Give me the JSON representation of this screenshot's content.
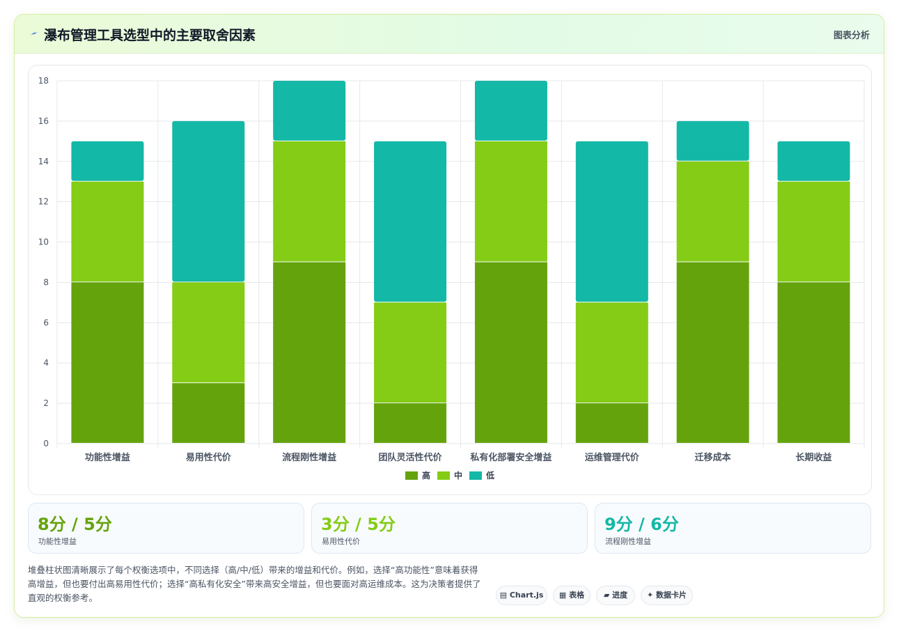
{
  "header": {
    "icon": "lightning-icon",
    "title": "瀑布管理工具选型中的主要取舍因素",
    "badge": "图表分析"
  },
  "colors": {
    "high": "#65a30d",
    "mid": "#84cc16",
    "low": "#14b8a6",
    "grid": "#e5e7eb",
    "axis_text": "#4b5563"
  },
  "chart_data": {
    "type": "bar",
    "stacked": true,
    "categories": [
      "功能性增益",
      "易用性代价",
      "流程刚性增益",
      "团队灵活性代价",
      "私有化部署安全增益",
      "运维管理代价",
      "迁移成本",
      "长期收益"
    ],
    "series": [
      {
        "name": "高",
        "values": [
          8,
          3,
          9,
          2,
          9,
          2,
          9,
          8
        ]
      },
      {
        "name": "中",
        "values": [
          5,
          5,
          6,
          5,
          6,
          5,
          5,
          5
        ]
      },
      {
        "name": "低",
        "values": [
          2,
          8,
          3,
          8,
          3,
          8,
          2,
          2
        ]
      }
    ],
    "ylim": [
      0,
      18
    ],
    "yticks": [
      0,
      2,
      4,
      6,
      8,
      10,
      12,
      14,
      16,
      18
    ],
    "grid": true,
    "legend_position": "bottom"
  },
  "stats": [
    {
      "value": "8分 / 5分",
      "label": "功能性增益",
      "color": "#65a30d"
    },
    {
      "value": "3分 / 5分",
      "label": "易用性代价",
      "color": "#84cc16"
    },
    {
      "value": "9分 / 6分",
      "label": "流程刚性增益",
      "color": "#14b8a6"
    }
  ],
  "description": "堆叠柱状图清晰展示了每个权衡选项中，不同选择（高/中/低）带来的增益和代价。例如，选择“高功能性”意味着获得高增益，但也要付出高易用性代价；选择“高私有化安全”带来高安全增益，但也要面对高运维成本。这为决策者提供了直观的权衡参考。",
  "tags": [
    {
      "icon": "▤",
      "label": "Chart.js"
    },
    {
      "icon": "▦",
      "label": "表格"
    },
    {
      "icon": "▰",
      "label": "进度"
    },
    {
      "icon": "✦",
      "label": "数据卡片"
    }
  ]
}
